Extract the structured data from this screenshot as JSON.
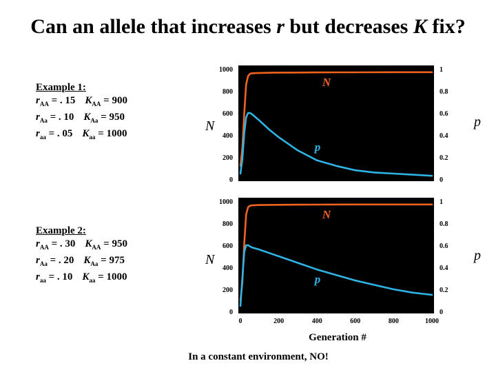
{
  "title_prefix": "Can an allele that increases ",
  "title_r": "r",
  "title_mid": " but decreases ",
  "title_K": "K",
  "title_suffix": " fix?",
  "examples": [
    {
      "heading": "Example 1:",
      "rows": [
        {
          "r_sub": "AA",
          "r_val": " = . 15",
          "K_sub": "AA",
          "K_val": " = 900"
        },
        {
          "r_sub": "Aa",
          "r_val": " = . 10",
          "K_sub": "Aa",
          "K_val": " = 950"
        },
        {
          "r_sub": "aa",
          "r_val": " = . 05",
          "K_sub": "aa",
          "K_val": " = 1000"
        }
      ]
    },
    {
      "heading": "Example 2:",
      "rows": [
        {
          "r_sub": "AA",
          "r_val": " = . 30",
          "K_sub": "AA",
          "K_val": " = 950"
        },
        {
          "r_sub": "Aa",
          "r_val": " = . 20",
          "K_sub": "Aa",
          "K_val": " = 975"
        },
        {
          "r_sub": "aa",
          "r_val": " = . 10",
          "K_sub": "aa",
          "K_val": " = 1000"
        }
      ]
    }
  ],
  "left_axis_label": "N",
  "right_axis_label": "p",
  "xlabel": "Generation #",
  "caption": "In a constant environment, NO!",
  "colors": {
    "N": "#f2641e",
    "p": "#2fb4e6",
    "plot_bg": "#000000"
  },
  "chart_data": [
    {
      "type": "line",
      "xlim": [
        0,
        1000
      ],
      "ylim_left": [
        0,
        1000
      ],
      "ylim_right": [
        0,
        1
      ],
      "left_ticks": [
        0,
        200,
        400,
        600,
        800,
        1000
      ],
      "right_ticks": [
        "0",
        "0.2",
        "0.4",
        "0.6",
        "0.8",
        "1"
      ],
      "series": [
        {
          "name": "N",
          "axis": "left",
          "x": [
            0,
            10,
            20,
            30,
            40,
            50,
            60,
            80,
            100,
            150,
            200,
            300,
            400,
            600,
            800,
            1000
          ],
          "y": [
            120,
            280,
            600,
            860,
            935,
            955,
            960,
            962,
            963,
            965,
            966,
            967,
            968,
            969,
            970,
            970
          ]
        },
        {
          "name": "p",
          "axis": "right",
          "x": [
            0,
            10,
            20,
            30,
            40,
            50,
            60,
            80,
            100,
            150,
            200,
            300,
            400,
            500,
            600,
            700,
            800,
            900,
            1000
          ],
          "y": [
            0.05,
            0.18,
            0.42,
            0.56,
            0.6,
            0.6,
            0.59,
            0.56,
            0.53,
            0.45,
            0.38,
            0.26,
            0.17,
            0.12,
            0.08,
            0.06,
            0.05,
            0.04,
            0.03
          ]
        }
      ]
    },
    {
      "type": "line",
      "xlim": [
        0,
        1000
      ],
      "ylim_left": [
        0,
        1000
      ],
      "ylim_right": [
        0,
        1
      ],
      "left_ticks": [
        0,
        200,
        400,
        600,
        800,
        1000
      ],
      "right_ticks": [
        "0",
        "0.2",
        "0.4",
        "0.6",
        "0.8",
        "1"
      ],
      "x_ticks": [
        0,
        200,
        400,
        600,
        800,
        1000
      ],
      "series": [
        {
          "name": "N",
          "axis": "left",
          "x": [
            0,
            10,
            20,
            30,
            40,
            50,
            60,
            80,
            100,
            150,
            200,
            300,
            400,
            600,
            800,
            1000
          ],
          "y": [
            100,
            260,
            620,
            880,
            945,
            958,
            962,
            964,
            965,
            966,
            967,
            968,
            969,
            970,
            970,
            970
          ]
        },
        {
          "name": "p",
          "axis": "right",
          "x": [
            0,
            10,
            20,
            30,
            40,
            50,
            60,
            80,
            100,
            150,
            200,
            300,
            400,
            500,
            600,
            700,
            800,
            900,
            1000
          ],
          "y": [
            0.05,
            0.3,
            0.54,
            0.6,
            0.6,
            0.59,
            0.58,
            0.57,
            0.56,
            0.53,
            0.5,
            0.44,
            0.38,
            0.33,
            0.28,
            0.24,
            0.2,
            0.17,
            0.15
          ]
        }
      ]
    }
  ]
}
